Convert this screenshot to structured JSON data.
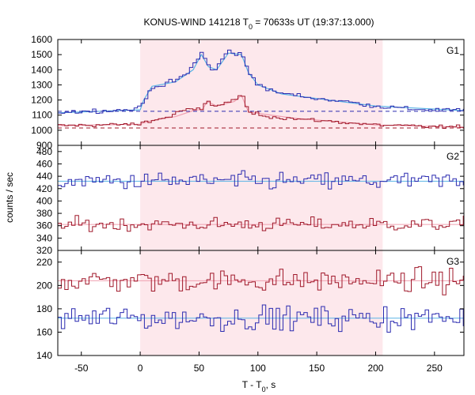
{
  "chart_data": {
    "type": "line",
    "title": "KONUS-WIND 141218 T",
    "title_sub": "0",
    "title_rest": " = 70633s UT (19:37:13.000)",
    "xlabel": "T - T",
    "xlabel_sub": "0",
    "xlabel_rest": ", s",
    "ylabel": "counts / sec",
    "xlim": [
      -70,
      275
    ],
    "x_ticks": [
      -50,
      0,
      50,
      100,
      150,
      200,
      250
    ],
    "x_tick_labels": [
      "-50",
      "0",
      "50",
      "100",
      "150",
      "200",
      "250"
    ],
    "highlight_interval": [
      0,
      206
    ],
    "colors": {
      "blue": "#2b2bb0",
      "red": "#a0182a",
      "fit_blue": "#5ab4e6",
      "fit_red": "#f0a0b0",
      "highlight": "#fde8ec"
    },
    "panels": [
      {
        "label": "G1",
        "ylim": [
          900,
          1600
        ],
        "y_ticks": [
          900,
          1000,
          1100,
          1200,
          1300,
          1400,
          1500,
          1600
        ],
        "y_tick_labels": [
          "900",
          "1000",
          "1100",
          "1200",
          "1300",
          "1400",
          "1500",
          "1600"
        ],
        "background": [
          {
            "series": "blue",
            "value": 1125,
            "style": "dashed"
          },
          {
            "series": "red",
            "value": 1015,
            "style": "dashed"
          }
        ],
        "keypoints": {
          "blue": [
            [
              -70,
              1120
            ],
            [
              -10,
              1135
            ],
            [
              0,
              1150
            ],
            [
              5,
              1210
            ],
            [
              10,
              1290
            ],
            [
              20,
              1300
            ],
            [
              30,
              1330
            ],
            [
              40,
              1370
            ],
            [
              45,
              1430
            ],
            [
              52,
              1510
            ],
            [
              58,
              1440
            ],
            [
              63,
              1380
            ],
            [
              68,
              1450
            ],
            [
              75,
              1530
            ],
            [
              80,
              1500
            ],
            [
              86,
              1510
            ],
            [
              92,
              1390
            ],
            [
              100,
              1310
            ],
            [
              110,
              1260
            ],
            [
              125,
              1240
            ],
            [
              150,
              1210
            ],
            [
              175,
              1190
            ],
            [
              200,
              1160
            ],
            [
              230,
              1140
            ],
            [
              275,
              1130
            ]
          ],
          "red": [
            [
              -70,
              1030
            ],
            [
              0,
              1040
            ],
            [
              5,
              1060
            ],
            [
              15,
              1070
            ],
            [
              25,
              1090
            ],
            [
              35,
              1130
            ],
            [
              45,
              1135
            ],
            [
              53,
              1140
            ],
            [
              57,
              1200
            ],
            [
              63,
              1160
            ],
            [
              70,
              1170
            ],
            [
              80,
              1200
            ],
            [
              86,
              1240
            ],
            [
              92,
              1120
            ],
            [
              110,
              1090
            ],
            [
              140,
              1070
            ],
            [
              160,
              1060
            ],
            [
              200,
              1035
            ],
            [
              240,
              1025
            ],
            [
              275,
              1020
            ]
          ]
        },
        "noise": {
          "blue": 12,
          "red": 10
        },
        "fit_blue_points": [
          [
            -70,
            1115
          ],
          [
            0,
            1135
          ],
          [
            3,
            1200
          ],
          [
            10,
            1290
          ],
          [
            30,
            1320
          ],
          [
            45,
            1400
          ],
          [
            52,
            1500
          ],
          [
            58,
            1420
          ],
          [
            65,
            1400
          ],
          [
            75,
            1510
          ],
          [
            86,
            1500
          ],
          [
            92,
            1380
          ],
          [
            100,
            1300
          ],
          [
            120,
            1240
          ],
          [
            150,
            1210
          ],
          [
            200,
            1160
          ],
          [
            275,
            1130
          ]
        ],
        "fit_red_points": [
          [
            -70,
            1030
          ],
          [
            0,
            1040
          ],
          [
            10,
            1065
          ],
          [
            30,
            1090
          ],
          [
            45,
            1130
          ],
          [
            53,
            1140
          ],
          [
            57,
            1190
          ],
          [
            65,
            1160
          ],
          [
            80,
            1190
          ],
          [
            86,
            1230
          ],
          [
            92,
            1120
          ],
          [
            130,
            1080
          ],
          [
            200,
            1035
          ],
          [
            275,
            1020
          ]
        ]
      },
      {
        "label": "G2",
        "ylim": [
          320,
          490
        ],
        "y_ticks": [
          320,
          340,
          360,
          380,
          400,
          420,
          440,
          460,
          480
        ],
        "y_tick_labels": [
          "320",
          "340",
          "360",
          "380",
          "400",
          "420",
          "440",
          "460",
          "480"
        ],
        "background": [
          {
            "series": "blue",
            "value": 432,
            "style": "solid"
          },
          {
            "series": "red",
            "value": 362,
            "style": "solid"
          }
        ],
        "keypoints": {
          "blue": [
            [
              -70,
              432
            ],
            [
              275,
              432
            ]
          ],
          "red": [
            [
              -70,
              362
            ],
            [
              275,
              362
            ]
          ]
        },
        "noise": {
          "blue": 12,
          "red": 9
        }
      },
      {
        "label": "G3",
        "ylim": [
          140,
          230
        ],
        "y_ticks": [
          140,
          160,
          180,
          200,
          220
        ],
        "y_tick_labels": [
          "140",
          "160",
          "180",
          "200",
          "220"
        ],
        "background": [
          {
            "series": "red",
            "value": 204,
            "style": "solid"
          },
          {
            "series": "blue",
            "value": 172,
            "style": "solid"
          }
        ],
        "keypoints": {
          "red": [
            [
              -70,
              204
            ],
            [
              275,
              204
            ]
          ],
          "blue": [
            [
              -70,
              172
            ],
            [
              275,
              172
            ]
          ]
        },
        "noise": {
          "red": 8,
          "blue": 9
        }
      }
    ],
    "bin_width": 2.944
  }
}
